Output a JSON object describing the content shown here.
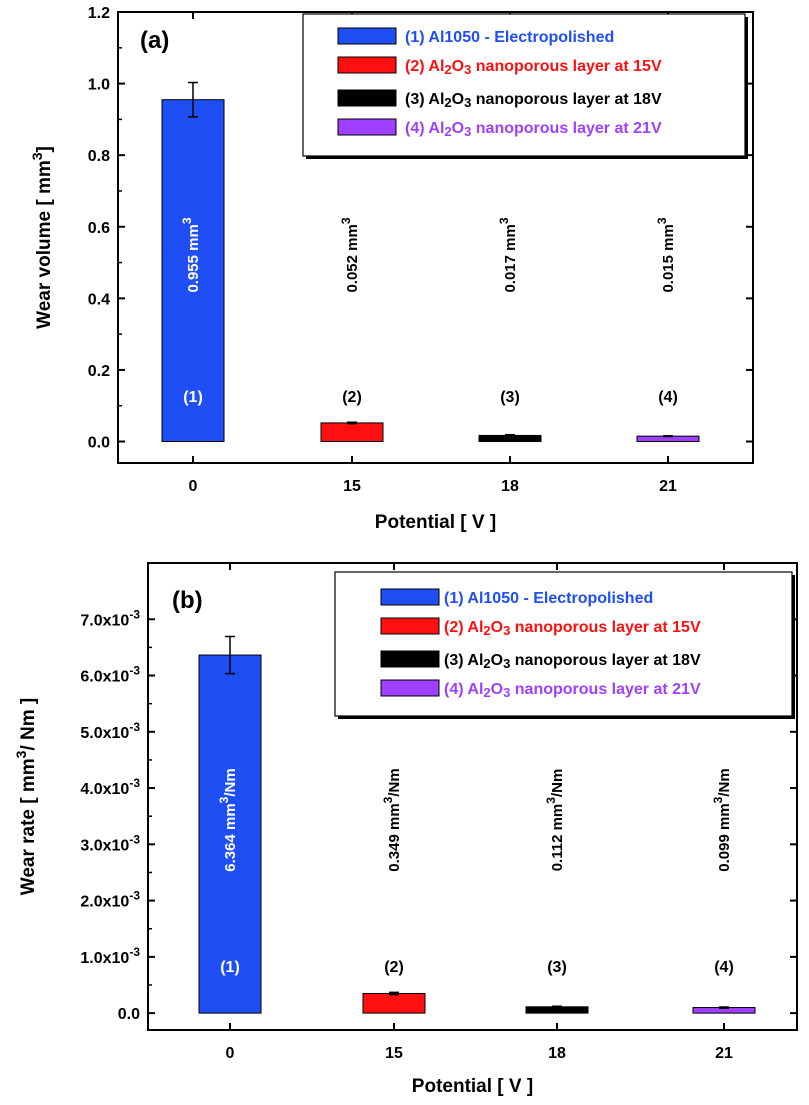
{
  "chart_data": [
    {
      "type": "bar",
      "panel_label": "(a)",
      "categories": [
        "0",
        "15",
        "18",
        "21"
      ],
      "values": [
        0.955,
        0.052,
        0.017,
        0.015
      ],
      "errors": [
        0.048,
        0.002,
        0.002,
        0.001
      ],
      "ylim": [
        -0.06,
        1.2
      ],
      "yticks": [
        0.0,
        0.2,
        0.4,
        0.6,
        0.8,
        1.0,
        1.2
      ],
      "ytick_labels": [
        "0.0",
        "0.2",
        "0.4",
        "0.6",
        "0.8",
        "1.0",
        "1.2"
      ],
      "xlabel": "Potential [ V ]",
      "ylabel": {
        "main": "Wear volume [ mm",
        "sup": "3",
        "end": "]"
      },
      "grid": false,
      "legend_position": "top-right",
      "colors": [
        "#1f4ef5",
        "#ff1010",
        "#000000",
        "#a040ff"
      ],
      "legend": [
        {
          "prefix": "(1) Al1050 - Electropolished",
          "sub": "",
          "mid": "",
          "sub2": "",
          "suffix": ""
        },
        {
          "prefix": "(2) Al",
          "sub": "2",
          "mid": "O",
          "sub2": "3",
          "suffix": " nanoporous layer at 15V"
        },
        {
          "prefix": "(3) Al",
          "sub": "2",
          "mid": "O",
          "sub2": "3",
          "suffix": " nanoporous layer at 18V"
        },
        {
          "prefix": "(4) Al",
          "sub": "2",
          "mid": "O",
          "sub2": "3",
          "suffix": " nanoporous layer at 21V"
        }
      ],
      "value_labels": [
        {
          "text": "0.955 mm",
          "sup": "3",
          "after": ""
        },
        {
          "text": "0.052 mm",
          "sup": "3",
          "after": ""
        },
        {
          "text": "0.017 mm",
          "sup": "3",
          "after": ""
        },
        {
          "text": "0.015 mm",
          "sup": "3",
          "after": ""
        }
      ],
      "bar_numbers": [
        "(1)",
        "(2)",
        "(3)",
        "(4)"
      ]
    },
    {
      "type": "bar",
      "panel_label": "(b)",
      "categories": [
        "0",
        "15",
        "18",
        "21"
      ],
      "values": [
        0.006364,
        0.000349,
        0.000112,
        9.9e-05
      ],
      "errors": [
        0.00033,
        2e-05,
        1e-05,
        1e-05
      ],
      "ylim": [
        -0.0003,
        0.008
      ],
      "yticks": [
        0.0,
        0.001,
        0.002,
        0.003,
        0.004,
        0.005,
        0.006,
        0.007
      ],
      "ytick_labels": [
        {
          "base": "0.0",
          "exp": ""
        },
        {
          "base": "1.0x10",
          "exp": "-3"
        },
        {
          "base": "2.0x10",
          "exp": "-3"
        },
        {
          "base": "3.0x10",
          "exp": "-3"
        },
        {
          "base": "4.0x10",
          "exp": "-3"
        },
        {
          "base": "5.0x10",
          "exp": "-3"
        },
        {
          "base": "6.0x10",
          "exp": "-3"
        },
        {
          "base": "7.0x10",
          "exp": "-3"
        }
      ],
      "xlabel": "Potential [ V ]",
      "ylabel": {
        "main": "Wear rate [ mm",
        "sup": "3",
        "end": "/ Nm ]"
      },
      "grid": false,
      "legend_position": "top-right",
      "colors": [
        "#1f4ef5",
        "#ff1010",
        "#000000",
        "#a040ff"
      ],
      "legend": [
        {
          "prefix": "(1) Al1050 - Electropolished",
          "sub": "",
          "mid": "",
          "sub2": "",
          "suffix": ""
        },
        {
          "prefix": "(2) Al",
          "sub": "2",
          "mid": "O",
          "sub2": "3",
          "suffix": " nanoporous layer at 15V"
        },
        {
          "prefix": "(3) Al",
          "sub": "2",
          "mid": "O",
          "sub2": "3",
          "suffix": " nanoporous layer at 18V"
        },
        {
          "prefix": "(4) Al",
          "sub": "2",
          "mid": "O",
          "sub2": "3",
          "suffix": " nanoporous layer at 21V"
        }
      ],
      "value_labels": [
        {
          "text": "6.364 mm",
          "sup": "3",
          "after": "/Nm"
        },
        {
          "text": "0.349 mm",
          "sup": "3",
          "after": "/Nm"
        },
        {
          "text": "0.112 mm",
          "sup": "3",
          "after": "/Nm"
        },
        {
          "text": "0.099 mm",
          "sup": "3",
          "after": "/Nm"
        }
      ],
      "bar_numbers": [
        "(1)",
        "(2)",
        "(3)",
        "(4)"
      ]
    }
  ]
}
